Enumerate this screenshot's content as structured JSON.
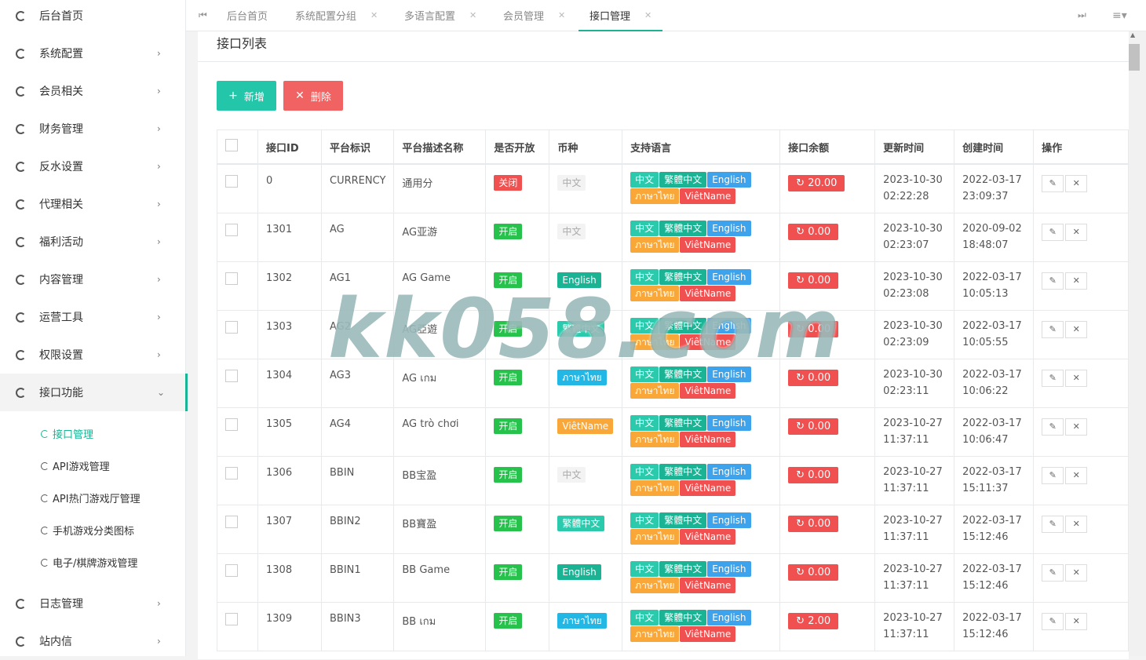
{
  "sidebar": {
    "items": [
      {
        "label": "后台首页"
      },
      {
        "label": "系统配置"
      },
      {
        "label": "会员相关"
      },
      {
        "label": "财务管理"
      },
      {
        "label": "反水设置"
      },
      {
        "label": "代理相关"
      },
      {
        "label": "福利活动"
      },
      {
        "label": "内容管理"
      },
      {
        "label": "运营工具"
      },
      {
        "label": "权限设置"
      },
      {
        "label": "接口功能"
      },
      {
        "label": "日志管理"
      },
      {
        "label": "站内信"
      }
    ],
    "sub_items": [
      {
        "label": "接口管理"
      },
      {
        "label": "API游戏管理"
      },
      {
        "label": "API热门游戏厅管理"
      },
      {
        "label": "手机游戏分类图标"
      },
      {
        "label": "电子/棋牌游戏管理"
      }
    ]
  },
  "tabs": [
    {
      "label": "后台首页"
    },
    {
      "label": "系统配置分组"
    },
    {
      "label": "多语言配置"
    },
    {
      "label": "会员管理"
    },
    {
      "label": "接口管理"
    }
  ],
  "panel": {
    "title": "接口列表",
    "add_label": "新增",
    "delete_label": "删除"
  },
  "table": {
    "headers": [
      "接口ID",
      "平台标识",
      "平台描述名称",
      "是否开放",
      "币种",
      "支持语言",
      "接口余额",
      "更新时间",
      "创建时间",
      "操作"
    ],
    "lang_labels": [
      "中文",
      "繁體中文",
      "English",
      "ภาษาไทย",
      "ViêtName"
    ],
    "rows": [
      {
        "id": "0",
        "code": "CURRENCY",
        "name": "通用分",
        "status": "关闭",
        "currency": "中文",
        "balance": "20.00",
        "updated": [
          "2023-10-30",
          "02:22:28"
        ],
        "created": [
          "2022-03-17",
          "23:09:37"
        ]
      },
      {
        "id": "1301",
        "code": "AG",
        "name": "AG亚游",
        "status": "开启",
        "currency": "中文",
        "balance": "0.00",
        "updated": [
          "2023-10-30",
          "02:23:07"
        ],
        "created": [
          "2020-09-02",
          "18:48:07"
        ]
      },
      {
        "id": "1302",
        "code": "AG1",
        "name": "AG Game",
        "status": "开启",
        "currency": "English",
        "balance": "0.00",
        "updated": [
          "2023-10-30",
          "02:23:08"
        ],
        "created": [
          "2022-03-17",
          "10:05:13"
        ]
      },
      {
        "id": "1303",
        "code": "AG2",
        "name": "AG亞遊",
        "status": "开启",
        "currency": "繁體中文",
        "balance": "0.00",
        "updated": [
          "2023-10-30",
          "02:23:09"
        ],
        "created": [
          "2022-03-17",
          "10:05:55"
        ]
      },
      {
        "id": "1304",
        "code": "AG3",
        "name": "AG เกม",
        "status": "开启",
        "currency": "ภาษาไทย",
        "balance": "0.00",
        "updated": [
          "2023-10-30",
          "02:23:11"
        ],
        "created": [
          "2022-03-17",
          "10:06:22"
        ]
      },
      {
        "id": "1305",
        "code": "AG4",
        "name": "AG trò chơi",
        "status": "开启",
        "currency": "ViêtName",
        "balance": "0.00",
        "updated": [
          "2023-10-27",
          "11:37:11"
        ],
        "created": [
          "2022-03-17",
          "10:06:47"
        ]
      },
      {
        "id": "1306",
        "code": "BBIN",
        "name": "BB宝盈",
        "status": "开启",
        "currency": "中文",
        "balance": "0.00",
        "updated": [
          "2023-10-27",
          "11:37:11"
        ],
        "created": [
          "2022-03-17",
          "15:11:37"
        ]
      },
      {
        "id": "1307",
        "code": "BBIN2",
        "name": "BB寶盈",
        "status": "开启",
        "currency": "繁體中文",
        "balance": "0.00",
        "updated": [
          "2023-10-27",
          "11:37:11"
        ],
        "created": [
          "2022-03-17",
          "15:12:46"
        ]
      },
      {
        "id": "1308",
        "code": "BBIN1",
        "name": "BB Game",
        "status": "开启",
        "currency": "English",
        "balance": "0.00",
        "updated": [
          "2023-10-27",
          "11:37:11"
        ],
        "created": [
          "2022-03-17",
          "15:12:46"
        ]
      },
      {
        "id": "1309",
        "code": "BBIN3",
        "name": "BB เกม",
        "status": "开启",
        "currency": "ภาษาไทย",
        "balance": "2.00",
        "updated": [
          "2023-10-27",
          "11:37:11"
        ],
        "created": [
          "2022-03-17",
          "15:12:46"
        ]
      }
    ]
  },
  "watermark": "kk058.com",
  "colors": {
    "accent": "#1ab394",
    "danger": "#f05050",
    "success": "#27c24c",
    "info": "#23b7e5",
    "warning": "#f9a738"
  },
  "icons": [
    "circle-nav-icon",
    "chevron-right-icon",
    "chevron-down-icon",
    "plus-icon",
    "close-icon",
    "refresh-icon",
    "edit-icon",
    "first-page-icon",
    "last-page-icon",
    "menu-icon"
  ]
}
